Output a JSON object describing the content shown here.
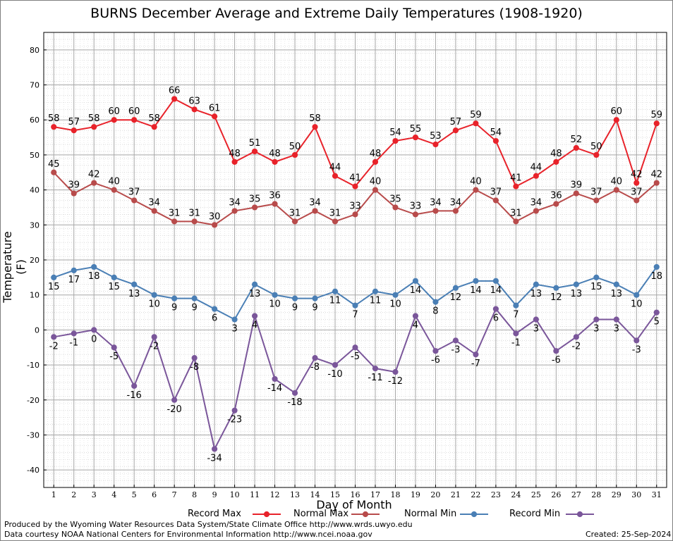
{
  "chart_data": {
    "type": "line",
    "title": "BURNS December Average and Extreme Daily Temperatures (1908-1920)",
    "xlabel": "Day of Month",
    "ylabel": "Temperature (F)",
    "ylim": [
      -45,
      85
    ],
    "yticks": [
      -40,
      -30,
      -20,
      -10,
      0,
      10,
      20,
      30,
      40,
      50,
      60,
      70,
      80
    ],
    "x": [
      1,
      2,
      3,
      4,
      5,
      6,
      7,
      8,
      9,
      10,
      11,
      12,
      13,
      14,
      15,
      16,
      17,
      18,
      19,
      20,
      21,
      22,
      23,
      24,
      25,
      26,
      27,
      28,
      29,
      30,
      31
    ],
    "grid": true,
    "legend_position": "bottom",
    "series": [
      {
        "name": "Record Max",
        "color": "#e8222a",
        "values": [
          58,
          57,
          58,
          60,
          60,
          58,
          66,
          63,
          61,
          48,
          51,
          48,
          50,
          58,
          44,
          41,
          48,
          54,
          55,
          53,
          57,
          59,
          54,
          41,
          44,
          48,
          52,
          50,
          60,
          42,
          59
        ]
      },
      {
        "name": "Normal Max",
        "color": "#b84b4b",
        "values": [
          45,
          39,
          42,
          40,
          37,
          34,
          31,
          31,
          30,
          34,
          35,
          36,
          31,
          34,
          31,
          33,
          40,
          35,
          33,
          34,
          34,
          40,
          37,
          31,
          34,
          36,
          39,
          37,
          40,
          37,
          42
        ]
      },
      {
        "name": "Normal Min",
        "color": "#4a7fb5",
        "values": [
          15,
          17,
          18,
          15,
          13,
          10,
          9,
          9,
          6,
          3,
          13,
          10,
          9,
          9,
          11,
          7,
          11,
          10,
          14,
          8,
          12,
          14,
          14,
          7,
          13,
          12,
          13,
          15,
          13,
          10,
          18
        ]
      },
      {
        "name": "Record Min",
        "color": "#7a569a",
        "values": [
          -2,
          -1,
          0,
          -5,
          -16,
          -2,
          -20,
          -8,
          -34,
          -23,
          4,
          -14,
          -18,
          -8,
          -10,
          -5,
          -11,
          -12,
          4,
          -6,
          -3,
          -7,
          6,
          -1,
          3,
          -6,
          -2,
          3,
          3,
          -3,
          5
        ]
      }
    ]
  },
  "footer": {
    "credit_line1": "Produced by the Wyoming Water Resources Data System/State Climate Office http://www.wrds.uwyo.edu",
    "credit_line2": "Data courtesy NOAA National Centers for Environmental Information http://www.ncei.noaa.gov",
    "created": "Created:  25-Sep-2024"
  }
}
